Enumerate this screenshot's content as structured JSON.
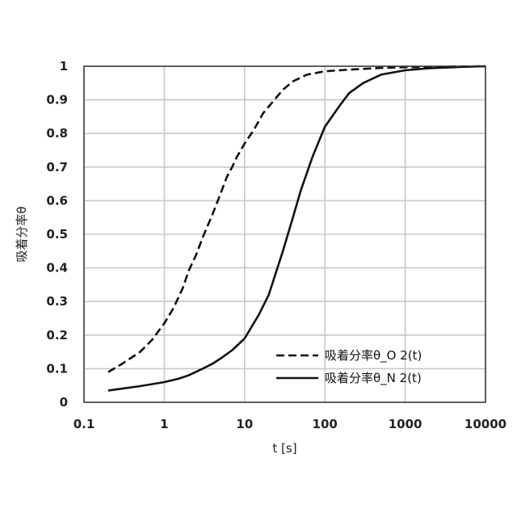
{
  "chart_data": {
    "type": "line",
    "title": "",
    "xlabel": "t [s]",
    "ylabel": "吸着分率θ",
    "xscale": "log",
    "xlim": [
      0.1,
      10000
    ],
    "ylim": [
      0,
      1
    ],
    "x_ticks": [
      "0.1",
      "1",
      "10",
      "100",
      "1000",
      "10000"
    ],
    "y_ticks": [
      "0",
      "0.1",
      "0.2",
      "0.3",
      "0.4",
      "0.5",
      "0.6",
      "0.7",
      "0.8",
      "0.9",
      "1"
    ],
    "grid": true,
    "legend_position": "bottom-right",
    "series": [
      {
        "name": "吸着分率θ_O 2(t)",
        "style": "dashed",
        "color": "#111111",
        "points": [
          [
            0.2,
            0.09
          ],
          [
            0.3,
            0.115
          ],
          [
            0.5,
            0.15
          ],
          [
            0.7,
            0.185
          ],
          [
            1.0,
            0.235
          ],
          [
            1.3,
            0.28
          ],
          [
            1.7,
            0.34
          ],
          [
            2.0,
            0.39
          ],
          [
            2.5,
            0.44
          ],
          [
            3.0,
            0.49
          ],
          [
            4.0,
            0.56
          ],
          [
            5.0,
            0.62
          ],
          [
            6.0,
            0.67
          ],
          [
            7.0,
            0.7
          ],
          [
            8.0,
            0.73
          ],
          [
            10.0,
            0.77
          ],
          [
            13.0,
            0.81
          ],
          [
            17.0,
            0.86
          ],
          [
            20.0,
            0.88
          ],
          [
            30.0,
            0.93
          ],
          [
            40.0,
            0.955
          ],
          [
            60.0,
            0.975
          ],
          [
            100.0,
            0.985
          ],
          [
            200.0,
            0.99
          ],
          [
            500.0,
            0.995
          ],
          [
            1000.0,
            0.997
          ],
          [
            10000.0,
            1.0
          ]
        ]
      },
      {
        "name": "吸着分率θ_N 2(t)",
        "style": "solid",
        "color": "#111111",
        "points": [
          [
            0.2,
            0.035
          ],
          [
            0.5,
            0.048
          ],
          [
            1.0,
            0.06
          ],
          [
            1.5,
            0.07
          ],
          [
            2.0,
            0.08
          ],
          [
            3.0,
            0.1
          ],
          [
            4.0,
            0.115
          ],
          [
            5.0,
            0.13
          ],
          [
            7.0,
            0.155
          ],
          [
            10.0,
            0.19
          ],
          [
            15.0,
            0.26
          ],
          [
            20.0,
            0.32
          ],
          [
            30.0,
            0.45
          ],
          [
            40.0,
            0.55
          ],
          [
            50.0,
            0.63
          ],
          [
            70.0,
            0.73
          ],
          [
            100.0,
            0.82
          ],
          [
            150.0,
            0.88
          ],
          [
            200.0,
            0.92
          ],
          [
            300.0,
            0.95
          ],
          [
            500.0,
            0.975
          ],
          [
            1000.0,
            0.988
          ],
          [
            2000.0,
            0.994
          ],
          [
            5000.0,
            0.998
          ],
          [
            10000.0,
            1.0
          ]
        ]
      }
    ]
  }
}
